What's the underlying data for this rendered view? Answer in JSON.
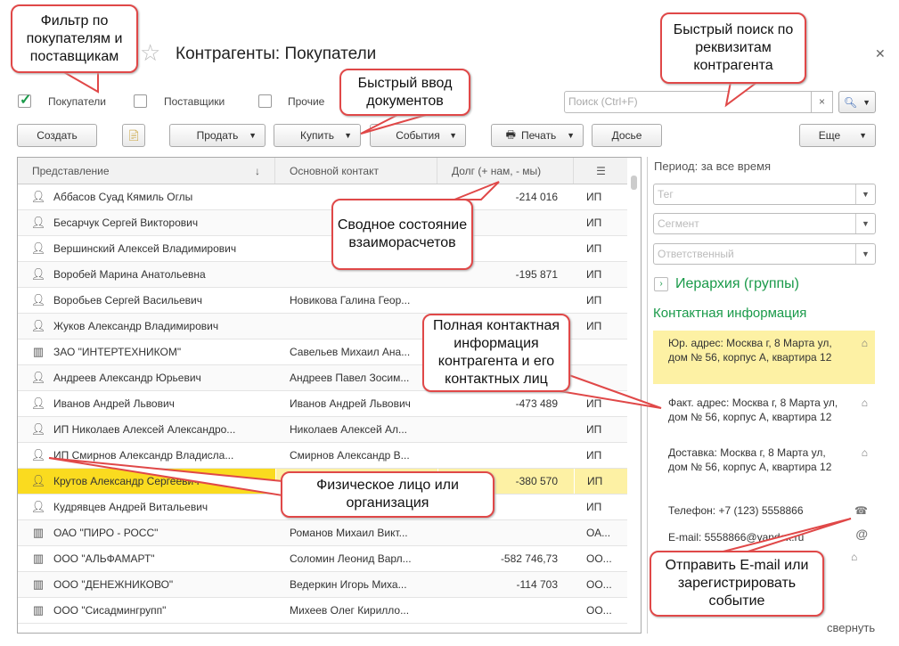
{
  "window": {
    "title": "Контрагенты: Покупатели",
    "star_icon": "star-icon",
    "close_icon": "close-icon"
  },
  "filters": [
    {
      "label": "Покупатели",
      "checked": true
    },
    {
      "label": "Поставщики",
      "checked": false
    },
    {
      "label": "Прочие",
      "checked": false
    }
  ],
  "search": {
    "placeholder": "Поиск (Ctrl+F)",
    "clear": "×",
    "button_icon": "search-icon"
  },
  "toolbar": {
    "create": "Создать",
    "sell": "Продать",
    "buy": "Купить",
    "events": "События",
    "print": "Печать",
    "dossier": "Досье",
    "more": "Еще"
  },
  "table": {
    "columns": [
      "Представление",
      "Основной контакт",
      "Долг (+ нам, - мы)"
    ],
    "sort_indicator": "↓",
    "rows": [
      {
        "kind": "person",
        "name": "Аббасов Суад Кямиль Оглы",
        "contact": "",
        "debt": "-214 016",
        "type": "ИП"
      },
      {
        "kind": "person",
        "name": "Бесарчук Сергей Викторович",
        "contact": "",
        "debt": "",
        "type": "ИП"
      },
      {
        "kind": "person",
        "name": "Вершинский Алексей Владимирович",
        "contact": "",
        "debt": "",
        "type": "ИП"
      },
      {
        "kind": "person",
        "name": "Воробей Марина Анатольевна",
        "contact": "",
        "debt": "-195 871",
        "type": "ИП"
      },
      {
        "kind": "person",
        "name": "Воробьев Сергей Васильевич",
        "contact": "Новикова Галина Геор...",
        "debt": "",
        "type": "ИП"
      },
      {
        "kind": "person",
        "name": "Жуков Александр Владимирович",
        "contact": "",
        "debt": "",
        "type": "ИП"
      },
      {
        "kind": "org",
        "name": "ЗАО \"ИНТЕРТЕХНИКОМ\"",
        "contact": "Савельев Михаил Ана...",
        "debt": "",
        "type": ""
      },
      {
        "kind": "person",
        "name": "Андреев Александр Юрьевич",
        "contact": "Андреев Павел Зосим...",
        "debt": "",
        "type": ""
      },
      {
        "kind": "person",
        "name": "Иванов Андрей Львович",
        "contact": "Иванов Андрей Львович",
        "debt": "-473 489",
        "type": "ИП"
      },
      {
        "kind": "person",
        "name": "ИП Николаев Алексей Александро...",
        "contact": "Николаев Алексей Ал...",
        "debt": "",
        "type": "ИП"
      },
      {
        "kind": "person",
        "name": "ИП Смирнов Александр Владисла...",
        "contact": "Смирнов Александр В...",
        "debt": "",
        "type": "ИП"
      },
      {
        "kind": "person",
        "name": "Крутов Александр Сергеевич",
        "contact": "",
        "debt": "-380 570",
        "type": "ИП",
        "selected": true
      },
      {
        "kind": "person",
        "name": "Кудрявцев Андрей Витальевич",
        "contact": "",
        "debt": "",
        "type": "ИП"
      },
      {
        "kind": "org",
        "name": "ОАО \"ПИРО - РОСС\"",
        "contact": "Романов Михаил Викт...",
        "debt": "",
        "type": "ОА..."
      },
      {
        "kind": "org",
        "name": "ООО \"АЛЬФАМАРТ\"",
        "contact": "Соломин Леонид Варл...",
        "debt": "-582 746,73",
        "type": "ОО..."
      },
      {
        "kind": "org",
        "name": "ООО \"ДЕНЕЖНИКОВО\"",
        "contact": "Ведеркин Игорь Миха...",
        "debt": "-114 703",
        "type": "ОО..."
      },
      {
        "kind": "org",
        "name": "ООО \"Сисадмингрупп\"",
        "contact": "Михеев Олег Кирилло...",
        "debt": "",
        "type": "ОО..."
      }
    ]
  },
  "side": {
    "period": "Период: за все время",
    "tag": "Тег",
    "segment": "Сегмент",
    "responsible": "Ответственный",
    "hierarchy": "Иерархия (группы)",
    "contact_title": "Контактная информация",
    "contacts": [
      {
        "text": "Юр. адрес: Москва г, 8 Марта ул, дом № 56, корпус А, квартира 12",
        "icon": "house-icon",
        "highlight": true
      },
      {
        "text": "Факт. адрес: Москва г, 8 Марта ул, дом № 56, корпус А, квартира 12",
        "icon": "house-icon"
      },
      {
        "text": "Доставка: Москва г, 8 Марта ул, дом № 56, корпус А, квартира 12",
        "icon": "house-icon"
      },
      {
        "text": "Телефон: +7 (123) 5558866",
        "icon": "phone-icon"
      },
      {
        "text": "E-mail: 5558866@yandex.ru",
        "icon": "at-icon"
      }
    ],
    "collapse": "свернуть"
  },
  "callouts": {
    "filter": "Фильтр по покупателям и поставщикам",
    "quick_input": "Быстрый ввод документов",
    "search": "Быстрый поиск по реквизитам контрагента",
    "summary": "Сводное состояние взаиморасчетов",
    "contact": "Полная контактная информация контрагента и его контактных лиц",
    "person_org": "Физическое лицо или организация",
    "email": "Отправить E-mail или зарегистрировать событие"
  },
  "colors": {
    "accent_green": "#1a9a4a",
    "selection": "#fadb1f",
    "callout_border": "#e04848"
  }
}
